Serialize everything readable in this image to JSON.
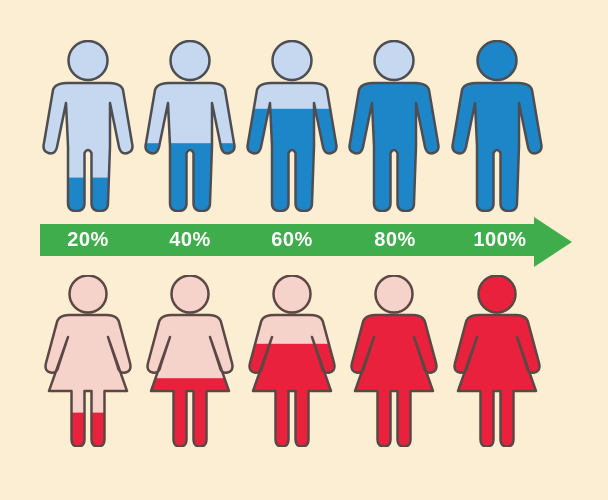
{
  "canvas": {
    "background_color": "#FCEED3"
  },
  "arrow": {
    "color": "#3FAD4C",
    "label_color": "#FFFFFF",
    "direction": "right"
  },
  "chart_data": {
    "type": "pictograph",
    "title": "",
    "categories": [
      "20%",
      "40%",
      "60%",
      "80%",
      "100%"
    ],
    "series": [
      {
        "name": "male",
        "values": [
          20,
          40,
          60,
          80,
          100
        ],
        "base_color": "#C5D8F0",
        "fill_color": "#1D86C8",
        "outline_color": "#4D4D52"
      },
      {
        "name": "female",
        "values": [
          20,
          40,
          60,
          80,
          100
        ],
        "base_color": "#F6D3CA",
        "fill_color": "#E9213D",
        "outline_color": "#5B4743"
      }
    ],
    "axis": {
      "labels": [
        "20%",
        "40%",
        "60%",
        "80%",
        "100%"
      ],
      "style": "green-right-arrow",
      "label_position": "inside-arrow"
    },
    "legend": "none",
    "fill_rule": "figures fill bottom-up by percentage; head filled only at 100%"
  }
}
